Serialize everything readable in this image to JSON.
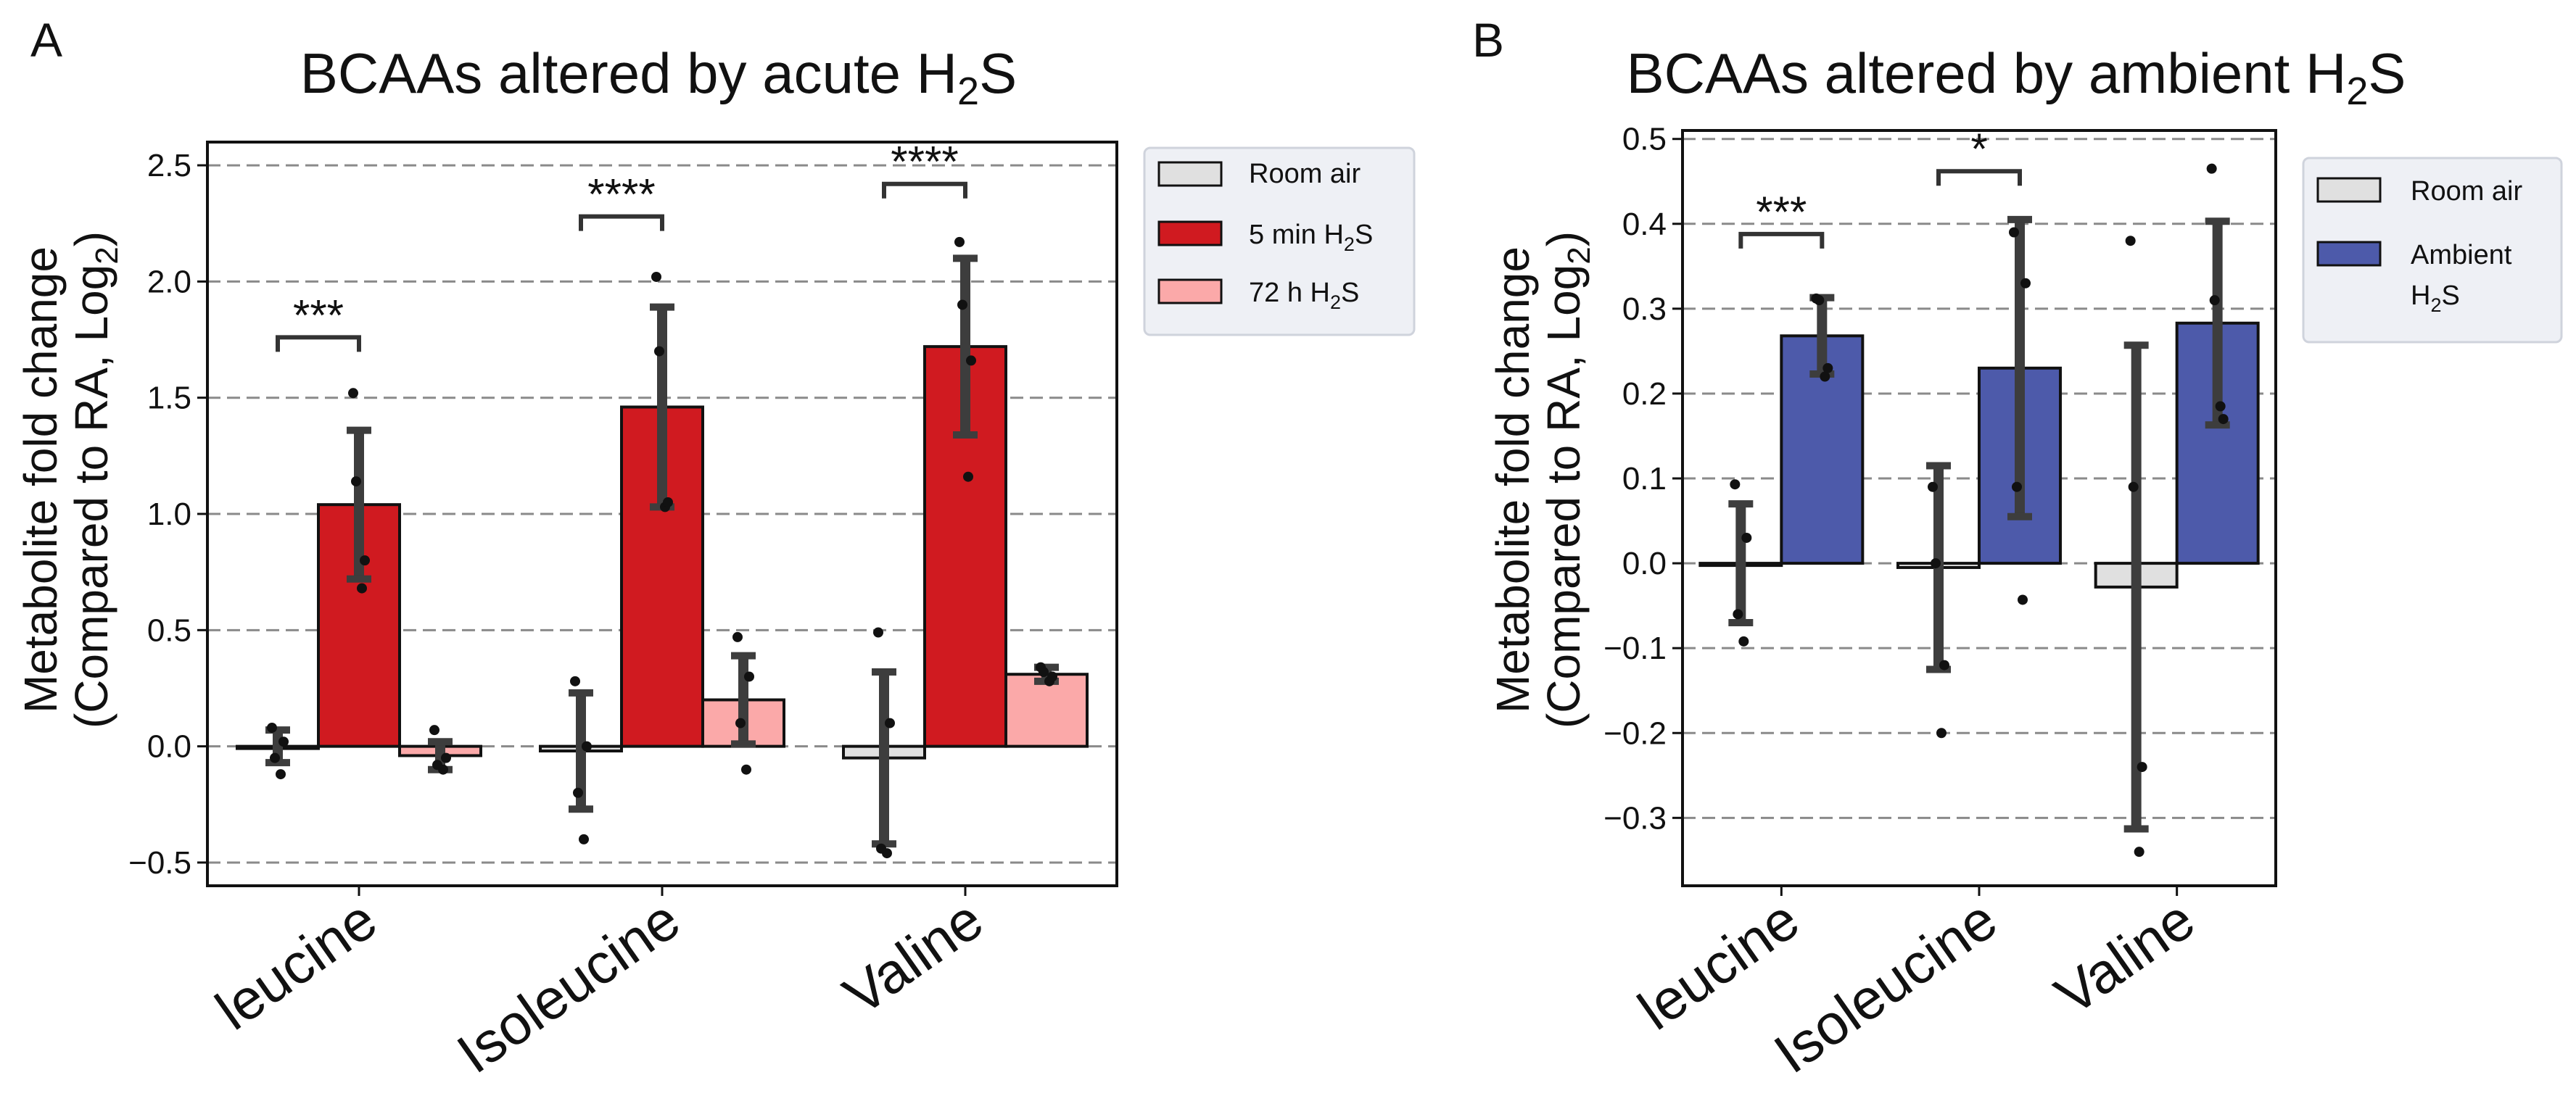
{
  "chart_data": [
    {
      "panel": "A",
      "type": "bar",
      "title": "BCAAs altered by acute H",
      "title_sub": "2",
      "title_tail": "S",
      "ylabel_line1": "Metabolite fold change",
      "ylabel_line2": "(Compared to RA, Log",
      "ylabel_sub": "2",
      "ylabel_tail": ")",
      "xlabel": "",
      "categories": [
        "leucine",
        "Isoleucine",
        "Valine"
      ],
      "ylim": [
        -0.6,
        2.6
      ],
      "yticks": [
        -0.5,
        0.0,
        0.5,
        1.0,
        1.5,
        2.0,
        2.5
      ],
      "ytick_labels": [
        "−0.5",
        "0.0",
        "0.5",
        "1.0",
        "1.5",
        "2.0",
        "2.5"
      ],
      "grid": "horizontal dashed",
      "legend_position": "outside-right-top",
      "series": [
        {
          "name": "Room air",
          "name_main": "Room air",
          "name_sub": "",
          "name_tail": "",
          "color": "#e0e0e0",
          "values": [
            0.0,
            -0.02,
            -0.05
          ],
          "errors": [
            0.07,
            0.25,
            0.37
          ],
          "points": [
            [
              0.08,
              -0.12,
              0.02,
              -0.05
            ],
            [
              0.28,
              -0.4,
              0.0,
              -0.2
            ],
            [
              0.49,
              -0.46,
              0.1,
              -0.44
            ]
          ]
        },
        {
          "name": "5 min H2S",
          "name_main": "5 min H",
          "name_sub": "2",
          "name_tail": "S",
          "color": "#d01a20",
          "values": [
            1.04,
            1.46,
            1.72
          ],
          "errors": [
            0.32,
            0.43,
            0.38
          ],
          "points": [
            [
              1.52,
              0.68,
              0.8,
              1.14
            ],
            [
              2.02,
              1.03,
              1.05,
              1.7
            ],
            [
              2.17,
              1.16,
              1.66,
              1.9
            ]
          ]
        },
        {
          "name": "72 h H2S",
          "name_main": "72 h H",
          "name_sub": "2",
          "name_tail": "S",
          "color": "#fba9a9",
          "values": [
            -0.04,
            0.2,
            0.31
          ],
          "errors": [
            0.06,
            0.19,
            0.03
          ],
          "points": [
            [
              0.07,
              -0.1,
              -0.05,
              -0.08
            ],
            [
              0.47,
              -0.1,
              0.3,
              0.1
            ],
            [
              0.34,
              0.28,
              0.3,
              0.32
            ]
          ]
        }
      ],
      "significance": [
        {
          "category": "leucine",
          "between": [
            "Room air",
            "5 min H2S"
          ],
          "label": "***",
          "y": 1.76
        },
        {
          "category": "Isoleucine",
          "between": [
            "Room air",
            "5 min H2S"
          ],
          "label": "****",
          "y": 2.28
        },
        {
          "category": "Valine",
          "between": [
            "Room air",
            "5 min H2S"
          ],
          "label": "****",
          "y": 2.42
        }
      ]
    },
    {
      "panel": "B",
      "type": "bar",
      "title": "BCAAs altered by ambient H",
      "title_sub": "2",
      "title_tail": "S",
      "ylabel_line1": "Metabolite fold change",
      "ylabel_line2": "(Compared to RA, Log",
      "ylabel_sub": "2",
      "ylabel_tail": ")",
      "xlabel": "",
      "categories": [
        "leucine",
        "Isoleucine",
        "Valine"
      ],
      "ylim": [
        -0.38,
        0.51
      ],
      "yticks": [
        -0.3,
        -0.2,
        -0.1,
        0.0,
        0.1,
        0.2,
        0.3,
        0.4,
        0.5
      ],
      "ytick_labels": [
        "−0.3",
        "−0.2",
        "−0.1",
        "0.0",
        "0.1",
        "0.2",
        "0.3",
        "0.4",
        "0.5"
      ],
      "grid": "horizontal dashed",
      "legend_position": "outside-right-top",
      "series": [
        {
          "name": "Room air",
          "name_main": "Room air",
          "name_sub": "",
          "name_tail": "",
          "color": "#e0e0e0",
          "values": [
            0.0,
            -0.005,
            -0.028
          ],
          "errors": [
            0.07,
            0.12,
            0.285
          ],
          "points": [
            [
              0.093,
              -0.092,
              0.03,
              -0.06
            ],
            [
              0.09,
              -0.2,
              -0.12,
              0.0
            ],
            [
              0.38,
              -0.34,
              -0.24,
              0.09
            ]
          ]
        },
        {
          "name": "Ambient H2S",
          "name_main": "Ambient",
          "name_sub": "2",
          "name_tail": "S",
          "name_prefix": "H",
          "color": "#4d5aaa",
          "values": [
            0.268,
            0.23,
            0.283
          ],
          "errors": [
            0.045,
            0.175,
            0.12
          ],
          "points": [
            [
              0.312,
              0.22,
              0.23,
              0.31
            ],
            [
              0.39,
              -0.043,
              0.33,
              0.09
            ],
            [
              0.465,
              0.185,
              0.17,
              0.31
            ]
          ]
        }
      ],
      "significance": [
        {
          "category": "leucine",
          "between": [
            "Room air",
            "Ambient H2S"
          ],
          "label": "***",
          "y": 0.388
        },
        {
          "category": "Isoleucine",
          "between": [
            "Room air",
            "Ambient H2S"
          ],
          "label": "*",
          "y": 0.462
        }
      ]
    }
  ],
  "panel_letters": [
    "A",
    "B"
  ]
}
